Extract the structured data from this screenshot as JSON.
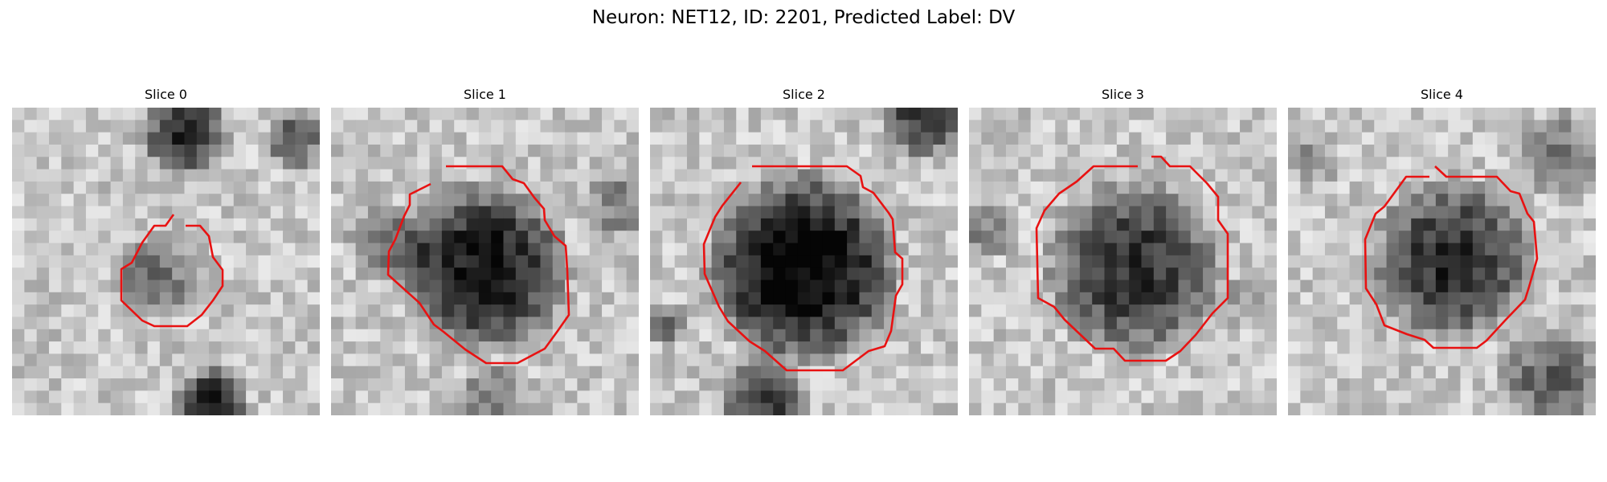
{
  "figure": {
    "title": "Neuron: NET12, ID: 2201, Predicted Label: DV"
  },
  "panels": [
    {
      "title": "Slice 0"
    },
    {
      "title": "Slice 1"
    },
    {
      "title": "Slice 2"
    },
    {
      "title": "Slice 3"
    },
    {
      "title": "Slice 4"
    }
  ],
  "colors": {
    "contour": "#e81212",
    "background": "#ffffff"
  },
  "colormap": "grayscale"
}
